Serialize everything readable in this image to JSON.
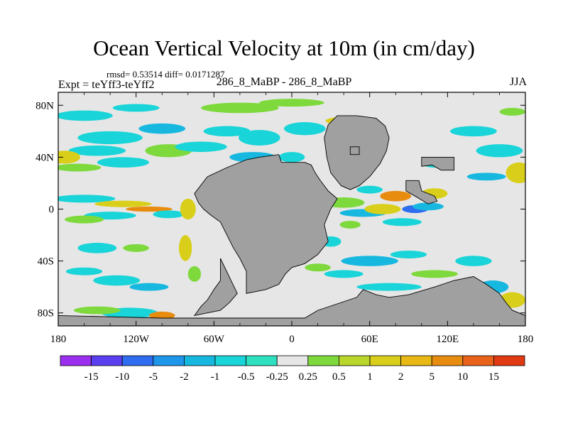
{
  "title": "Ocean Vertical Velocity at 10m (in cm/day)",
  "stats_line": "rmsd= 0.53514 diff= 0.0171287",
  "center_label": "286_8_MaBP - 286_8_MaBP",
  "left_label": "Expt = teYff3-teYff2",
  "right_label": "JJA",
  "colors": {
    "land": "#a0a0a0",
    "near_zero": "#e6e6e6"
  },
  "chart_data": {
    "type": "heatmap",
    "variable": "Ocean Vertical Velocity at 10m",
    "units": "cm/day",
    "season": "JJA",
    "x_range": [
      -180,
      180
    ],
    "y_range": [
      -90,
      90
    ],
    "x_tick_labels": [
      "180",
      "120W",
      "60W",
      "0",
      "60E",
      "120E",
      "180"
    ],
    "y_tick_labels": [
      "80N",
      "40N",
      "0",
      "40S",
      "80S"
    ],
    "colorbar": {
      "tick_labels": [
        "-15",
        "-10",
        "-5",
        "-2",
        "-1",
        "-0.5",
        "-0.25",
        "0.25",
        "0.5",
        "1",
        "2",
        "5",
        "10",
        "15"
      ],
      "colors": [
        "#9b2ff0",
        "#5a3ff0",
        "#2e6cf0",
        "#1e96ea",
        "#17b8e0",
        "#19d4d8",
        "#2de0bf",
        "#e6e6e6",
        "#7ed93c",
        "#b9d62a",
        "#d9cf1a",
        "#e8b814",
        "#e88c10",
        "#e8621a",
        "#e03a12"
      ]
    }
  }
}
